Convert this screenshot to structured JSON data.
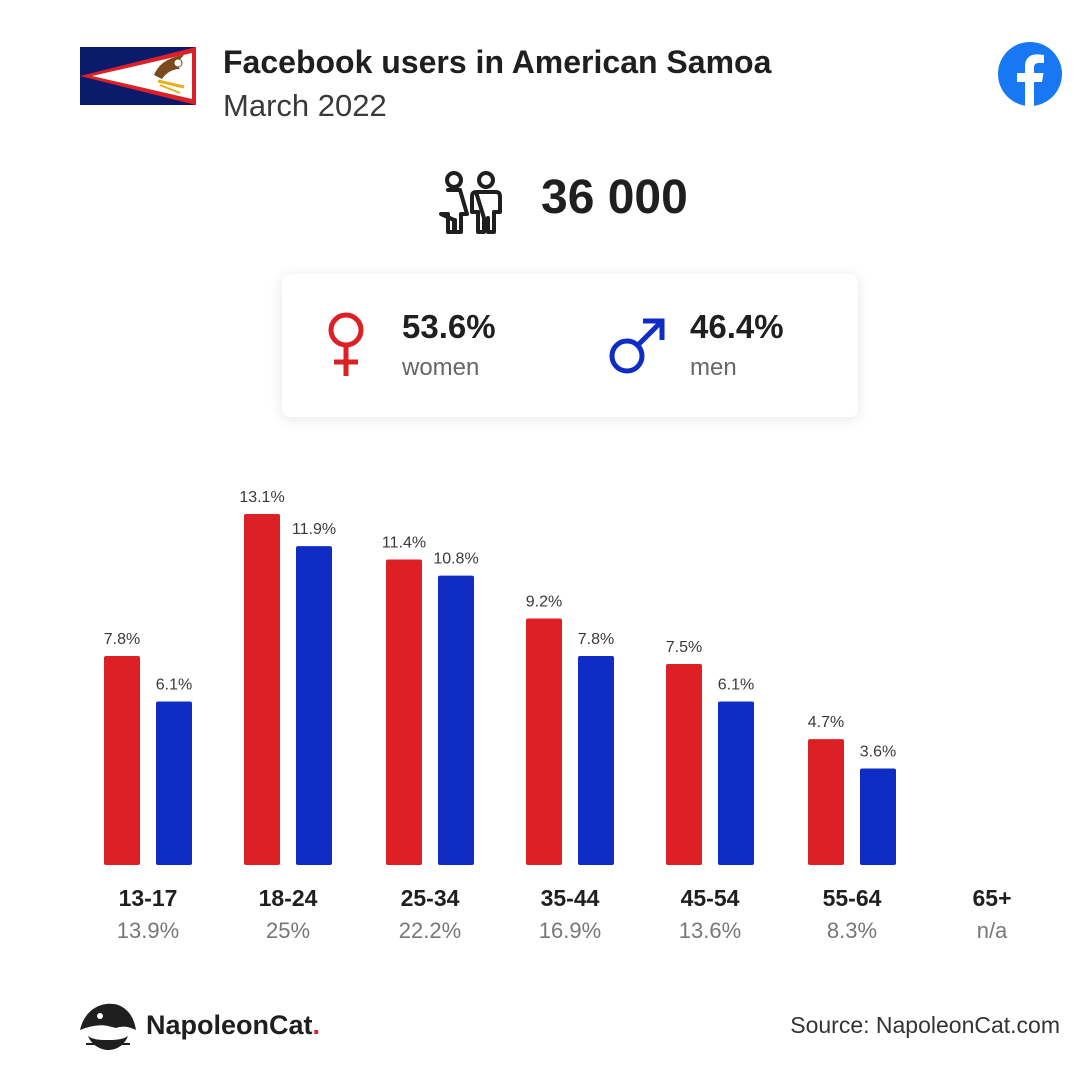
{
  "header": {
    "title": "Facebook users in American Samoa",
    "subtitle": "March 2022",
    "flag_icon": "american-samoa-flag-icon",
    "platform_icon": "facebook-icon"
  },
  "total": {
    "icon": "users-icon",
    "value": "36 000"
  },
  "gender": {
    "female": {
      "icon": "female-symbol-icon",
      "value": "53.6%",
      "label": "women",
      "color": "#dd1f26"
    },
    "male": {
      "icon": "male-symbol-icon",
      "value": "46.4%",
      "label": "men",
      "color": "#0f2cc4"
    }
  },
  "chart_data": {
    "type": "bar",
    "categories": [
      "13-17",
      "18-24",
      "25-34",
      "35-44",
      "45-54",
      "55-64",
      "65+"
    ],
    "category_totals": [
      "13.9%",
      "25%",
      "22.2%",
      "16.9%",
      "13.6%",
      "8.3%",
      "n/a"
    ],
    "series": [
      {
        "values": [
          7.8,
          13.1,
          11.4,
          9.2,
          7.5,
          4.7,
          null
        ],
        "labels": [
          "7.8%",
          "13.1%",
          "11.4%",
          "9.2%",
          "7.5%",
          "4.7%",
          ""
        ],
        "color": "#dd1f26"
      },
      {
        "values": [
          6.1,
          11.9,
          10.8,
          7.8,
          6.1,
          3.6,
          null
        ],
        "labels": [
          "6.1%",
          "11.9%",
          "10.8%",
          "7.8%",
          "6.1%",
          "3.6%",
          ""
        ],
        "color": "#0f2cc4"
      }
    ],
    "title": "",
    "xlabel": "",
    "ylabel": "",
    "ylim": [
      0,
      13.1
    ],
    "grid": false,
    "legend": "none"
  },
  "footer": {
    "brand_icon": "napoleoncat-logo-icon",
    "brand_name": "NapoleonCat",
    "brand_dot": ".",
    "source": "Source: NapoleonCat.com"
  }
}
